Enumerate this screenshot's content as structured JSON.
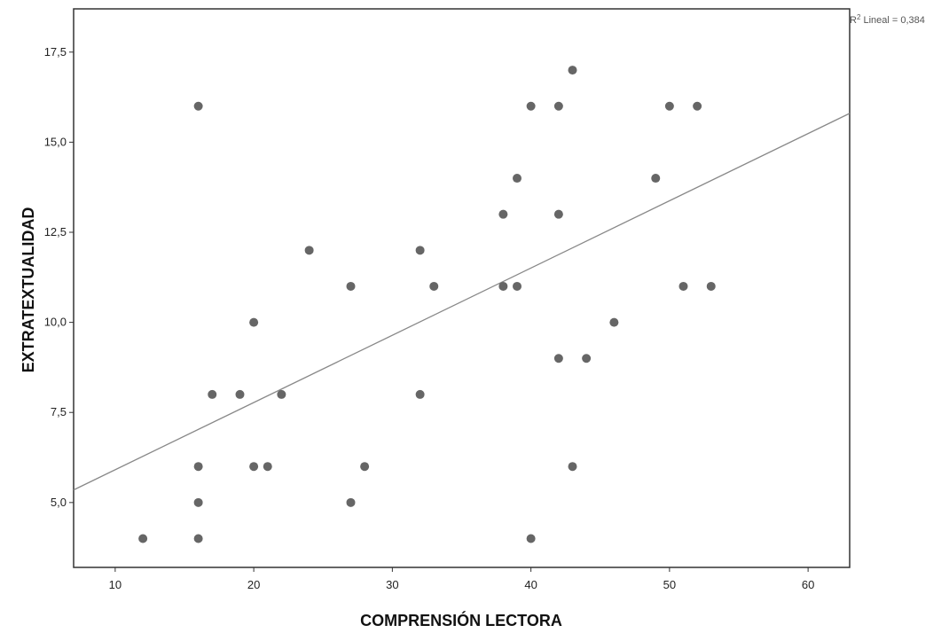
{
  "chart_data": {
    "type": "scatter",
    "title": "",
    "xlabel": "COMPRENSIÓN LECTORA",
    "ylabel": "EXTRATEXTUALIDAD",
    "xlim": [
      7,
      63
    ],
    "ylim": [
      3.2,
      18.7
    ],
    "x_ticks": [
      10,
      20,
      30,
      40,
      50,
      60
    ],
    "y_ticks": [
      5.0,
      7.5,
      10.0,
      12.5,
      15.0,
      17.5
    ],
    "x_tick_labels": [
      "10",
      "20",
      "30",
      "40",
      "50",
      "60"
    ],
    "y_tick_labels": [
      "5,0",
      "7,5",
      "10,0",
      "12,5",
      "15,0",
      "17,5"
    ],
    "grid": false,
    "fit_line": {
      "type": "linear",
      "label": "R² Lineal = 0,384",
      "x": [
        7,
        63
      ],
      "y": [
        5.35,
        15.8
      ]
    },
    "points": [
      [
        12,
        4
      ],
      [
        16,
        16
      ],
      [
        16,
        6
      ],
      [
        16,
        5
      ],
      [
        16,
        4
      ],
      [
        17,
        8
      ],
      [
        19,
        8
      ],
      [
        20,
        10
      ],
      [
        20,
        6
      ],
      [
        21,
        6
      ],
      [
        22,
        8
      ],
      [
        24,
        12
      ],
      [
        27,
        11
      ],
      [
        27,
        5
      ],
      [
        28,
        6
      ],
      [
        32,
        12
      ],
      [
        32,
        8
      ],
      [
        33,
        11
      ],
      [
        38,
        13
      ],
      [
        38,
        11
      ],
      [
        39,
        14
      ],
      [
        39,
        11
      ],
      [
        40,
        16
      ],
      [
        40,
        4
      ],
      [
        42,
        16
      ],
      [
        42,
        13
      ],
      [
        42,
        9
      ],
      [
        43,
        17
      ],
      [
        43,
        6
      ],
      [
        44,
        9
      ],
      [
        46,
        10
      ],
      [
        49,
        14
      ],
      [
        50,
        16
      ],
      [
        51,
        11
      ],
      [
        52,
        16
      ],
      [
        53,
        11
      ]
    ],
    "colors": {
      "points": "#666666",
      "line": "#888888",
      "frame": "#333333"
    }
  },
  "r2_annotation": {
    "prefix": "R",
    "sup": "2",
    "text": " Lineal = 0,384"
  }
}
